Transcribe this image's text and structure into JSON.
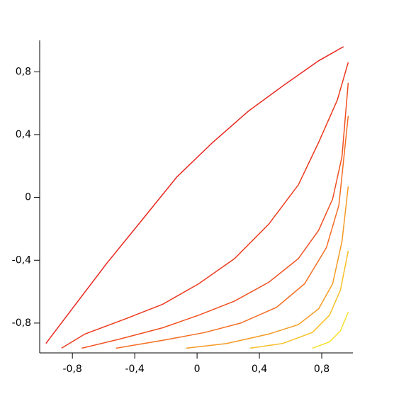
{
  "chart_data": {
    "type": "line",
    "xlim": [
      -1.01,
      1.0
    ],
    "ylim": [
      -0.99,
      1.0
    ],
    "xticks": [
      {
        "value": -0.8,
        "label": "-0,8"
      },
      {
        "value": -0.4,
        "label": "-0,4"
      },
      0,
      {
        "value": 0.4,
        "label": "0,4"
      },
      {
        "value": 0.8,
        "label": "0,8"
      }
    ],
    "yticks": [
      {
        "value": -0.8,
        "label": "-0,8"
      },
      {
        "value": -0.4,
        "label": "-0,4"
      },
      0,
      {
        "value": 0.4,
        "label": "0,4"
      },
      {
        "value": 0.8,
        "label": "0,8"
      }
    ],
    "series": [
      {
        "color": "#e8261e",
        "x": [
          -0.97,
          -0.81,
          -0.58,
          -0.35,
          -0.13,
          0.1,
          0.33,
          0.55,
          0.78,
          0.94
        ],
        "values": [
          -0.93,
          -0.72,
          -0.42,
          -0.14,
          0.13,
          0.35,
          0.55,
          0.71,
          0.87,
          0.96
        ]
      },
      {
        "color": "#ec3a1e",
        "x": [
          -0.87,
          -0.72,
          -0.45,
          -0.22,
          0.01,
          0.24,
          0.46,
          0.65,
          0.78,
          0.9,
          0.97
        ],
        "values": [
          -0.96,
          -0.87,
          -0.77,
          -0.68,
          -0.55,
          -0.39,
          -0.17,
          0.08,
          0.35,
          0.62,
          0.86
        ]
      },
      {
        "color": "#f05020",
        "x": [
          -0.74,
          -0.49,
          -0.22,
          0.01,
          0.24,
          0.46,
          0.65,
          0.78,
          0.87,
          0.93,
          0.97
        ],
        "values": [
          -0.96,
          -0.9,
          -0.83,
          -0.75,
          -0.66,
          -0.54,
          -0.39,
          -0.21,
          -0.01,
          0.26,
          0.73
        ]
      },
      {
        "color": "#f36d22",
        "x": [
          -0.52,
          -0.22,
          0.05,
          0.28,
          0.51,
          0.69,
          0.83,
          0.91,
          0.97
        ],
        "values": [
          -0.96,
          -0.91,
          -0.86,
          -0.8,
          -0.7,
          -0.55,
          -0.32,
          -0.05,
          0.52
        ]
      },
      {
        "color": "#f59a24",
        "x": [
          -0.07,
          0.19,
          0.46,
          0.65,
          0.78,
          0.87,
          0.93,
          0.97
        ],
        "values": [
          -0.96,
          -0.93,
          -0.87,
          -0.81,
          -0.71,
          -0.55,
          -0.28,
          0.07
        ]
      },
      {
        "color": "#f7c026",
        "x": [
          0.34,
          0.55,
          0.74,
          0.85,
          0.92,
          0.97
        ],
        "values": [
          -0.96,
          -0.93,
          -0.86,
          -0.75,
          -0.59,
          -0.34
        ]
      },
      {
        "color": "#f7e028",
        "x": [
          0.74,
          0.85,
          0.92,
          0.97
        ],
        "values": [
          -0.96,
          -0.92,
          -0.85,
          -0.73
        ]
      }
    ]
  }
}
